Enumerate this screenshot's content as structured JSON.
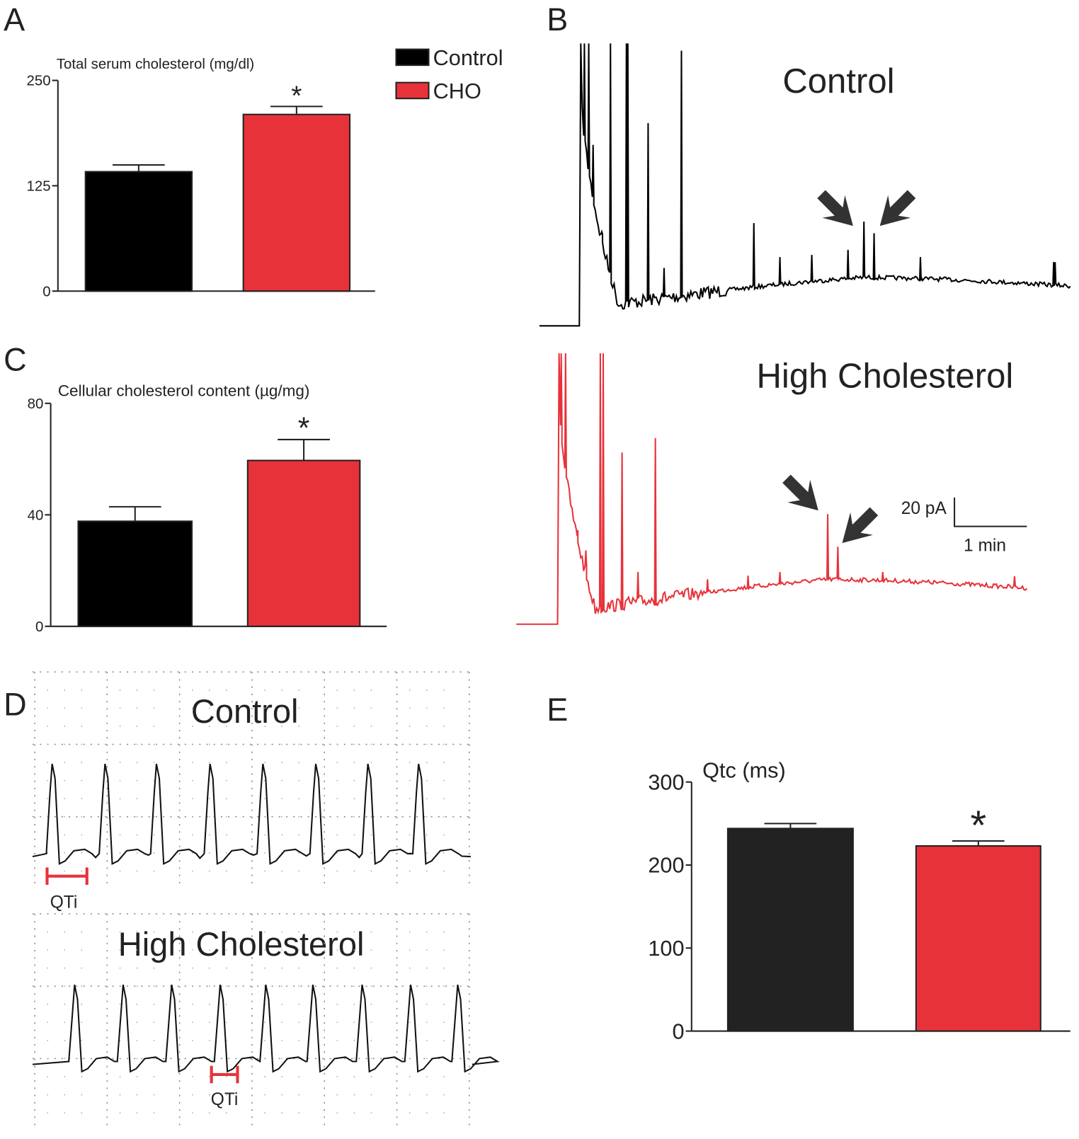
{
  "panel_labels": [
    "A",
    "B",
    "C",
    "D",
    "E"
  ],
  "chart_data": [
    {
      "type": "bar",
      "title": "Total serum cholesterol (mg/dl)",
      "values": [
        141.7,
        209.6
      ],
      "errors": [
        8,
        9.5
      ],
      "colors": [
        "#000000",
        "#e8323a"
      ],
      "ylim": [
        0,
        250
      ],
      "yticks": [
        0,
        125,
        250
      ],
      "annotation": "*",
      "legend": [
        {
          "label": "Control",
          "color": "#000000"
        },
        {
          "label": "CHO",
          "color": "#e8323a"
        }
      ]
    },
    {
      "type": "bar",
      "title": "Cellular cholesterol content (µg/mg)",
      "values": [
        37.7,
        59.5
      ],
      "errors": [
        5.2,
        7.5
      ],
      "colors": [
        "#000000",
        "#e8323a"
      ],
      "ylim": [
        0,
        80
      ],
      "yticks": [
        0,
        40,
        80
      ],
      "annotation": "*"
    },
    {
      "type": "bar",
      "title": "Qtc (ms)",
      "values": [
        244,
        223
      ],
      "errors": [
        6,
        6
      ],
      "colors": [
        "#222222",
        "#e8323a"
      ],
      "ylim": [
        0,
        300
      ],
      "yticks": [
        0,
        100,
        200,
        300
      ],
      "annotation": "*"
    }
  ],
  "traces": {
    "control_label": "Control",
    "high_label": "High Cholesterol",
    "scale_y": "20 pA",
    "scale_x": "1 min",
    "control_color": "#000000",
    "high_color": "#e8323a"
  },
  "ecg": {
    "control_label": "Control",
    "high_label": "High Cholesterol",
    "interval_label": "QTi",
    "interval_color": "#e8323a"
  }
}
